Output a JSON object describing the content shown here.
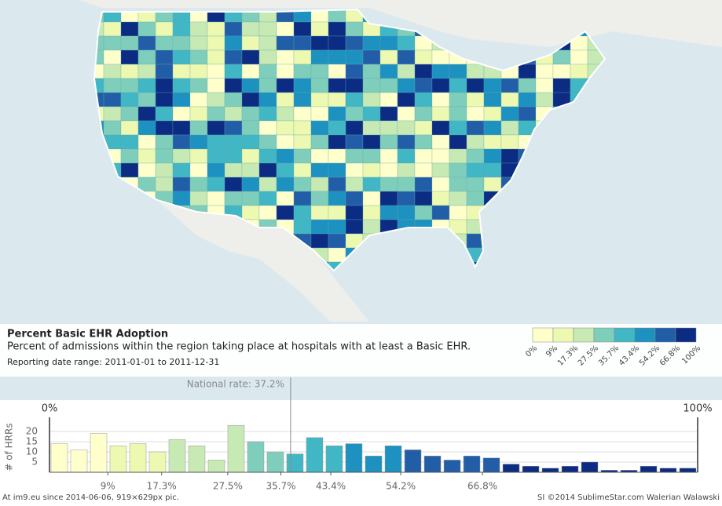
{
  "panel": {
    "title": "Percent Basic EHR Adoption",
    "subtitle": "Percent of admissions within the region taking place at hospitals with at least a Basic EHR.",
    "date_range": "Reporting date range: 2011-01-01 to 2011-12-31"
  },
  "legend": {
    "labels": [
      {
        "value": 0,
        "label": "0%"
      },
      {
        "value": 9,
        "label": "9%"
      },
      {
        "value": 17.3,
        "label": "17.3%"
      },
      {
        "value": 27.5,
        "label": "27.5%"
      },
      {
        "value": 35.7,
        "label": "35.7%"
      },
      {
        "value": 43.4,
        "label": "43.4%"
      },
      {
        "value": 54.2,
        "label": "54.2%"
      },
      {
        "value": 66.8,
        "label": "66.8%"
      },
      {
        "value": 100,
        "label": "100%"
      }
    ],
    "colors": [
      "#ffffcc",
      "#edf8b1",
      "#c7e9b4",
      "#7fcdbb",
      "#41b6c4",
      "#1d91c0",
      "#225ea8",
      "#0c2c84"
    ]
  },
  "chart_data": {
    "type": "histogram",
    "y_label": "# of HRRs",
    "bins": [
      0,
      3.03,
      6.06,
      9.09,
      12.12,
      15.15,
      18.18,
      21.21,
      24.24,
      27.27,
      30.3,
      33.33,
      36.36,
      39.39,
      42.42,
      45.45,
      48.48,
      51.52,
      54.55,
      57.58,
      60.61,
      63.64,
      66.67,
      69.7,
      72.73,
      75.76,
      78.79,
      81.82,
      84.85,
      87.88,
      90.91,
      93.94,
      96.97,
      100
    ],
    "values": [
      14,
      11,
      19,
      13,
      14,
      10,
      16,
      13,
      6,
      23,
      15,
      10,
      9,
      17,
      13,
      14,
      8,
      13,
      11,
      8,
      6,
      8,
      7,
      4,
      3,
      2,
      3,
      5,
      1,
      1,
      3,
      2,
      2
    ],
    "xlim": [
      0,
      100
    ],
    "range_labels": [
      "0%",
      "100%"
    ],
    "xticks": [
      {
        "value": 9,
        "label": "9%"
      },
      {
        "value": 17.3,
        "label": "17.3%"
      },
      {
        "value": 27.5,
        "label": "27.5%"
      },
      {
        "value": 35.7,
        "label": "35.7%"
      },
      {
        "value": 43.4,
        "label": "43.4%"
      },
      {
        "value": 54.2,
        "label": "54.2%"
      },
      {
        "value": 66.8,
        "label": "66.8%"
      }
    ],
    "ylim": [
      0,
      25
    ],
    "yticks": [
      5,
      10,
      15,
      20
    ],
    "grid": true,
    "annotation": {
      "text": "National rate: 37.2%",
      "value": 37.2
    }
  },
  "footer": {
    "left": "At im9.eu since 2014-06-06, 919×629px pic.",
    "right": "SI ©2014 SublimeStar.com Walerian Walawski"
  }
}
